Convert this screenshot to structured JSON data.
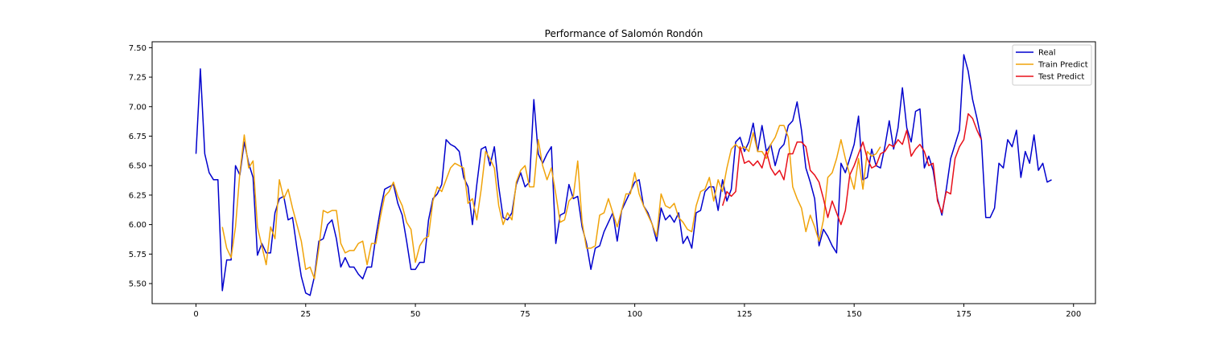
{
  "chart_data": {
    "type": "line",
    "title": "Performance of Salomón Rondón",
    "xlabel": "",
    "ylabel": "",
    "xlim": [
      -10,
      205
    ],
    "ylim": [
      5.33,
      7.55
    ],
    "xticks": [
      0,
      25,
      50,
      75,
      100,
      125,
      150,
      175,
      200
    ],
    "yticks": [
      5.5,
      5.75,
      6.0,
      6.25,
      6.5,
      6.75,
      7.0,
      7.25,
      7.5
    ],
    "ytick_labels": [
      "5.50",
      "5.75",
      "6.00",
      "6.25",
      "6.50",
      "6.75",
      "7.00",
      "7.25",
      "7.50"
    ],
    "grid": false,
    "legend_position": "top-right",
    "series": [
      {
        "name": "Real",
        "color": "#0000cd",
        "x_start": 0,
        "values": [
          6.6,
          7.32,
          6.6,
          6.44,
          6.38,
          6.38,
          5.44,
          5.7,
          5.7,
          6.5,
          6.42,
          6.7,
          6.52,
          6.4,
          5.74,
          5.84,
          5.76,
          5.76,
          6.1,
          6.22,
          6.24,
          6.04,
          6.06,
          5.8,
          5.56,
          5.42,
          5.4,
          5.56,
          5.86,
          5.88,
          6.0,
          6.04,
          5.88,
          5.64,
          5.72,
          5.64,
          5.64,
          5.58,
          5.54,
          5.64,
          5.64,
          5.9,
          6.12,
          6.3,
          6.32,
          6.34,
          6.18,
          6.08,
          5.86,
          5.62,
          5.62,
          5.68,
          5.68,
          6.04,
          6.22,
          6.26,
          6.34,
          6.72,
          6.68,
          6.66,
          6.62,
          6.4,
          6.32,
          6.0,
          6.34,
          6.64,
          6.66,
          6.5,
          6.66,
          6.32,
          6.06,
          6.04,
          6.1,
          6.34,
          6.44,
          6.32,
          6.36,
          7.06,
          6.6,
          6.52,
          6.6,
          6.66,
          5.84,
          6.08,
          6.1,
          6.34,
          6.22,
          6.24,
          5.98,
          5.84,
          5.62,
          5.8,
          5.82,
          5.94,
          6.02,
          6.1,
          5.86,
          6.12,
          6.2,
          6.28,
          6.36,
          6.38,
          6.16,
          6.1,
          6.0,
          5.86,
          6.14,
          6.04,
          6.08,
          6.02,
          6.1,
          5.84,
          5.9,
          5.8,
          6.1,
          6.12,
          6.28,
          6.32,
          6.32,
          6.12,
          6.38,
          6.2,
          6.3,
          6.7,
          6.74,
          6.62,
          6.7,
          6.86,
          6.62,
          6.84,
          6.62,
          6.68,
          6.5,
          6.64,
          6.68,
          6.84,
          6.88,
          7.04,
          6.8,
          6.48,
          6.36,
          6.22,
          5.82,
          5.96,
          5.9,
          5.82,
          5.76,
          6.52,
          6.44,
          6.56,
          6.68,
          6.92,
          6.38,
          6.4,
          6.64,
          6.5,
          6.48,
          6.66,
          6.88,
          6.64,
          6.82,
          7.16,
          6.82,
          6.7,
          6.96,
          6.98,
          6.48,
          6.58,
          6.46,
          6.22,
          6.08,
          6.3,
          6.56,
          6.68,
          6.8,
          7.44,
          7.3,
          7.06,
          6.9,
          6.72,
          6.06,
          6.06,
          6.14,
          6.52,
          6.48,
          6.72,
          6.66,
          6.8,
          6.4,
          6.62,
          6.52,
          6.76,
          6.46,
          6.52,
          6.36,
          6.38
        ]
      },
      {
        "name": "Train Predict",
        "color": "#f0a30a",
        "x_start": 6,
        "values": [
          5.98,
          5.8,
          5.72,
          5.98,
          6.44,
          6.76,
          6.48,
          6.54,
          5.98,
          5.82,
          5.66,
          5.98,
          5.88,
          6.38,
          6.22,
          6.3,
          6.14,
          6.0,
          5.86,
          5.62,
          5.64,
          5.54,
          5.8,
          6.12,
          6.1,
          6.12,
          6.12,
          5.84,
          5.76,
          5.78,
          5.78,
          5.84,
          5.86,
          5.66,
          5.84,
          5.84,
          6.06,
          6.24,
          6.28,
          6.36,
          6.24,
          6.16,
          6.02,
          5.96,
          5.68,
          5.82,
          5.88,
          5.9,
          6.2,
          6.32,
          6.28,
          6.38,
          6.48,
          6.52,
          6.5,
          6.48,
          6.18,
          6.22,
          6.04,
          6.3,
          6.62,
          6.56,
          6.48,
          6.16,
          6.0,
          6.1,
          6.04,
          6.36,
          6.46,
          6.5,
          6.32,
          6.32,
          6.72,
          6.5,
          6.38,
          6.48,
          6.26,
          6.02,
          6.04,
          6.2,
          6.24,
          6.54,
          6.02,
          5.8,
          5.8,
          5.82,
          6.08,
          6.1,
          6.22,
          6.1,
          5.98,
          6.12,
          6.26,
          6.26,
          6.44,
          6.26,
          6.16,
          6.08,
          6.0,
          5.9,
          6.26,
          6.16,
          6.14,
          6.18,
          6.06,
          6.02,
          5.96,
          5.94,
          6.16,
          6.28,
          6.3,
          6.4,
          6.2,
          6.38,
          6.28,
          6.48,
          6.64,
          6.68,
          6.64,
          6.66,
          6.62,
          6.78,
          6.62,
          6.62,
          6.56,
          6.68,
          6.74,
          6.84,
          6.84,
          6.74,
          6.32,
          6.22,
          6.14,
          5.94,
          6.08,
          5.98,
          5.86,
          6.04,
          6.4,
          6.44,
          6.56,
          6.72,
          6.56,
          6.42,
          6.3,
          6.56,
          6.3,
          6.62,
          6.58,
          6.6,
          6.66
        ]
      },
      {
        "name": "Test Predict",
        "color": "#e8101a",
        "x_start": 120,
        "values": [
          6.16,
          6.28,
          6.24,
          6.28,
          6.66,
          6.52,
          6.54,
          6.5,
          6.54,
          6.48,
          6.62,
          6.48,
          6.42,
          6.46,
          6.38,
          6.6,
          6.6,
          6.7,
          6.7,
          6.66,
          6.46,
          6.42,
          6.36,
          6.22,
          6.06,
          6.2,
          6.1,
          6.0,
          6.12,
          6.42,
          6.5,
          6.6,
          6.7,
          6.56,
          6.48,
          6.5,
          6.6,
          6.62,
          6.68,
          6.66,
          6.72,
          6.68,
          6.8,
          6.58,
          6.64,
          6.68,
          6.62,
          6.5,
          6.52,
          6.2,
          6.1,
          6.28,
          6.26,
          6.56,
          6.66,
          6.72,
          6.94,
          6.9,
          6.8,
          6.72
        ]
      }
    ]
  }
}
